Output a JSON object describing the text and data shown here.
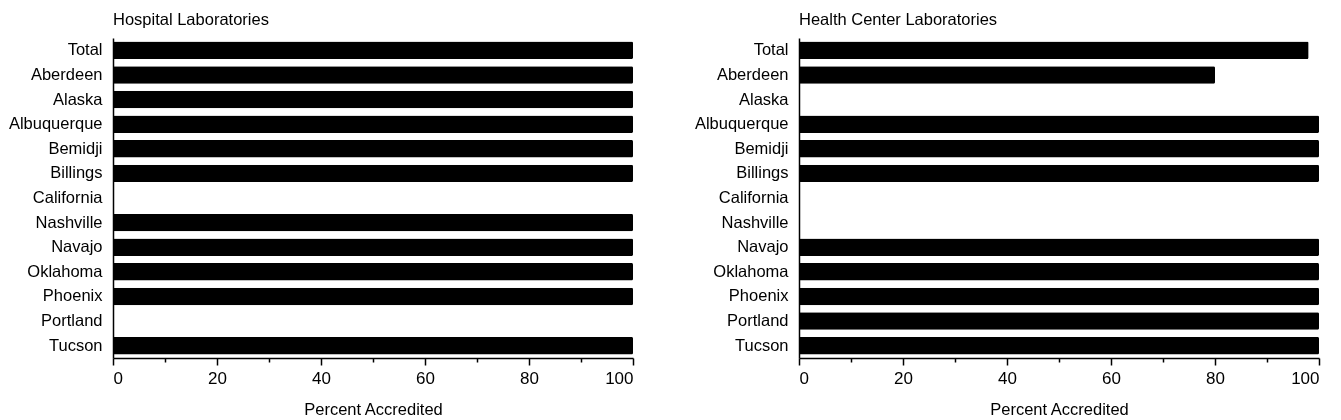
{
  "chart_data": [
    {
      "type": "bar",
      "orientation": "horizontal",
      "title": "Hospital Laboratories",
      "xlabel": "Percent  Accredited",
      "categories": [
        "Total",
        "Aberdeen",
        "Alaska",
        "Albuquerque",
        "Bemidji",
        "Billings",
        "California",
        "Nashville",
        "Navajo",
        "Oklahoma",
        "Phoenix",
        "Portland",
        "Tucson"
      ],
      "values": [
        100,
        100,
        100,
        100,
        100,
        100,
        null,
        100,
        100,
        100,
        100,
        null,
        100
      ],
      "color": "#000000",
      "xlim": [
        0,
        100
      ],
      "xticks": [
        0,
        {
          "value": 10,
          "label": null
        },
        20,
        {
          "value": 30,
          "label": null
        },
        40,
        {
          "value": 50,
          "label": null
        },
        60,
        {
          "value": 70,
          "label": null
        },
        80,
        {
          "value": 90,
          "label": null
        },
        100
      ]
    },
    {
      "type": "bar",
      "orientation": "horizontal",
      "title": "Health Center Laboratories",
      "xlabel": "Percent  Accredited",
      "categories": [
        "Total",
        "Aberdeen",
        "Alaska",
        "Albuquerque",
        "Bemidji",
        "Billings",
        "California",
        "Nashville",
        "Navajo",
        "Oklahoma",
        "Phoenix",
        "Portland",
        "Tucson"
      ],
      "values": [
        98,
        80,
        null,
        100,
        100,
        100,
        null,
        null,
        100,
        100,
        100,
        100,
        100
      ],
      "color": "#000000",
      "xlim": [
        0,
        100
      ],
      "xticks": [
        0,
        {
          "value": 10,
          "label": null
        },
        20,
        {
          "value": 30,
          "label": null
        },
        40,
        {
          "value": 50,
          "label": null
        },
        60,
        {
          "value": 70,
          "label": null
        },
        80,
        {
          "value": 90,
          "label": null
        },
        100
      ]
    }
  ]
}
